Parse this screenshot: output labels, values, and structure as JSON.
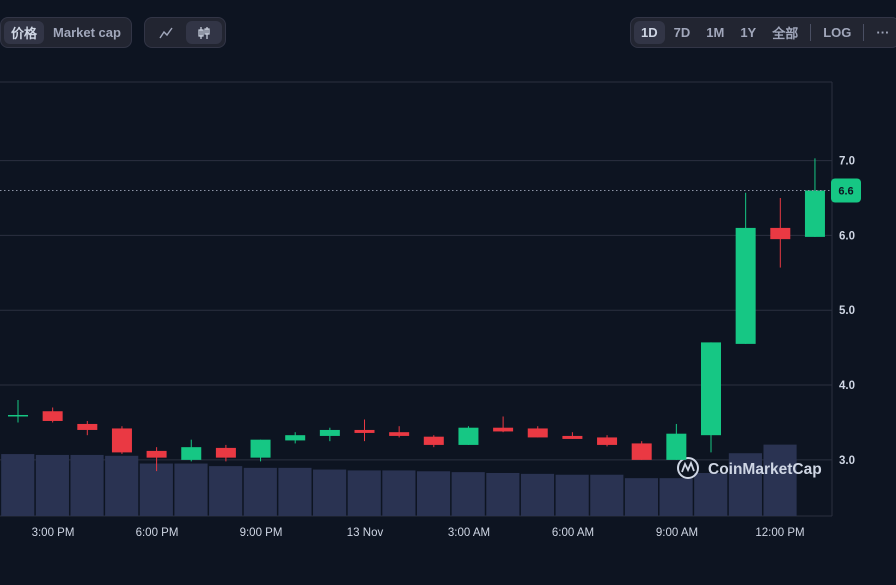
{
  "toolbar": {
    "metric_tabs": [
      {
        "label": "价格",
        "active": true
      },
      {
        "label": "Market cap",
        "active": false
      }
    ],
    "chart_type_tabs": [
      {
        "icon": "line-chart-icon",
        "active": false
      },
      {
        "icon": "candlestick-icon",
        "active": true
      }
    ],
    "range_tabs": [
      {
        "label": "1D",
        "active": true
      },
      {
        "label": "7D",
        "active": false
      },
      {
        "label": "1M",
        "active": false
      },
      {
        "label": "1Y",
        "active": false
      },
      {
        "label": "全部",
        "active": false
      }
    ],
    "log_label": "LOG",
    "more_label": "···"
  },
  "watermark": "CoinMarketCap",
  "colors": {
    "up": "#16c784",
    "down": "#ea3943",
    "volume": "#2a3352",
    "grid": "#2b3040",
    "background": "#0d1421"
  },
  "chart_data": {
    "type": "candlestick",
    "y_ticks": [
      "3.0",
      "4.0",
      "5.0",
      "6.0",
      "7.0"
    ],
    "ylim": [
      2.25,
      8.05
    ],
    "x_ticks": [
      "3:00 PM",
      "6:00 PM",
      "9:00 PM",
      "13 Nov",
      "3:00 AM",
      "6:00 AM",
      "9:00 AM",
      "12:00 PM"
    ],
    "current_price": "6.6",
    "current_price_value": 6.6,
    "candles": [
      {
        "o": 3.58,
        "h": 3.8,
        "l": 3.5,
        "c": 3.6
      },
      {
        "o": 3.65,
        "h": 3.7,
        "l": 3.5,
        "c": 3.52
      },
      {
        "o": 3.48,
        "h": 3.52,
        "l": 3.33,
        "c": 3.4
      },
      {
        "o": 3.42,
        "h": 3.45,
        "l": 3.08,
        "c": 3.1
      },
      {
        "o": 3.12,
        "h": 3.17,
        "l": 2.85,
        "c": 3.03
      },
      {
        "o": 3.0,
        "h": 3.27,
        "l": 2.98,
        "c": 3.17
      },
      {
        "o": 3.16,
        "h": 3.2,
        "l": 2.98,
        "c": 3.03
      },
      {
        "o": 3.03,
        "h": 3.27,
        "l": 2.98,
        "c": 3.27
      },
      {
        "o": 3.26,
        "h": 3.37,
        "l": 3.22,
        "c": 3.33
      },
      {
        "o": 3.32,
        "h": 3.43,
        "l": 3.25,
        "c": 3.4
      },
      {
        "o": 3.4,
        "h": 3.54,
        "l": 3.25,
        "c": 3.36
      },
      {
        "o": 3.37,
        "h": 3.45,
        "l": 3.3,
        "c": 3.32
      },
      {
        "o": 3.31,
        "h": 3.33,
        "l": 3.17,
        "c": 3.2
      },
      {
        "o": 3.2,
        "h": 3.45,
        "l": 3.2,
        "c": 3.43
      },
      {
        "o": 3.43,
        "h": 3.58,
        "l": 3.37,
        "c": 3.38
      },
      {
        "o": 3.42,
        "h": 3.45,
        "l": 3.3,
        "c": 3.3
      },
      {
        "o": 3.32,
        "h": 3.37,
        "l": 3.28,
        "c": 3.28
      },
      {
        "o": 3.3,
        "h": 3.33,
        "l": 3.18,
        "c": 3.2
      },
      {
        "o": 3.22,
        "h": 3.25,
        "l": 3.0,
        "c": 3.0
      },
      {
        "o": 3.0,
        "h": 3.48,
        "l": 3.0,
        "c": 3.35
      },
      {
        "o": 3.33,
        "h": 4.57,
        "l": 3.1,
        "c": 4.57
      },
      {
        "o": 4.55,
        "h": 6.57,
        "l": 4.55,
        "c": 6.1
      },
      {
        "o": 6.1,
        "h": 6.5,
        "l": 5.57,
        "c": 5.95
      },
      {
        "o": 5.98,
        "h": 7.03,
        "l": 5.98,
        "c": 6.6
      }
    ],
    "volume": [
      0.72,
      0.71,
      0.71,
      0.7,
      0.61,
      0.61,
      0.58,
      0.56,
      0.56,
      0.54,
      0.53,
      0.53,
      0.52,
      0.51,
      0.5,
      0.49,
      0.48,
      0.48,
      0.44,
      0.44,
      0.5,
      0.73,
      0.83,
      0.0
    ]
  }
}
